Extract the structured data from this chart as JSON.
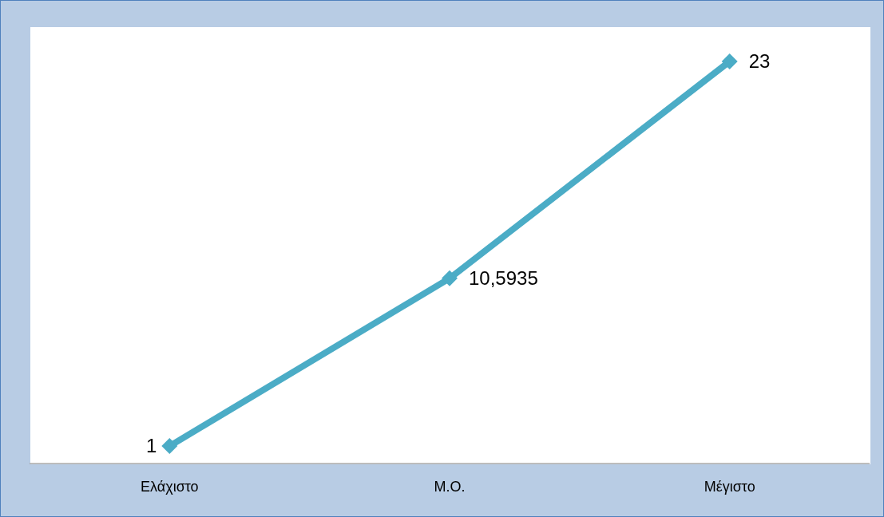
{
  "chart_data": {
    "type": "line",
    "categories": [
      "Ελάχιστο",
      "Μ.Ο.",
      "Μέγιστο"
    ],
    "series": [
      {
        "color": "#4bacc6",
        "values": [
          1,
          10.5935,
          23
        ],
        "value_labels": [
          "1",
          "10,5935",
          "23"
        ]
      }
    ],
    "marker": "diamond"
  }
}
